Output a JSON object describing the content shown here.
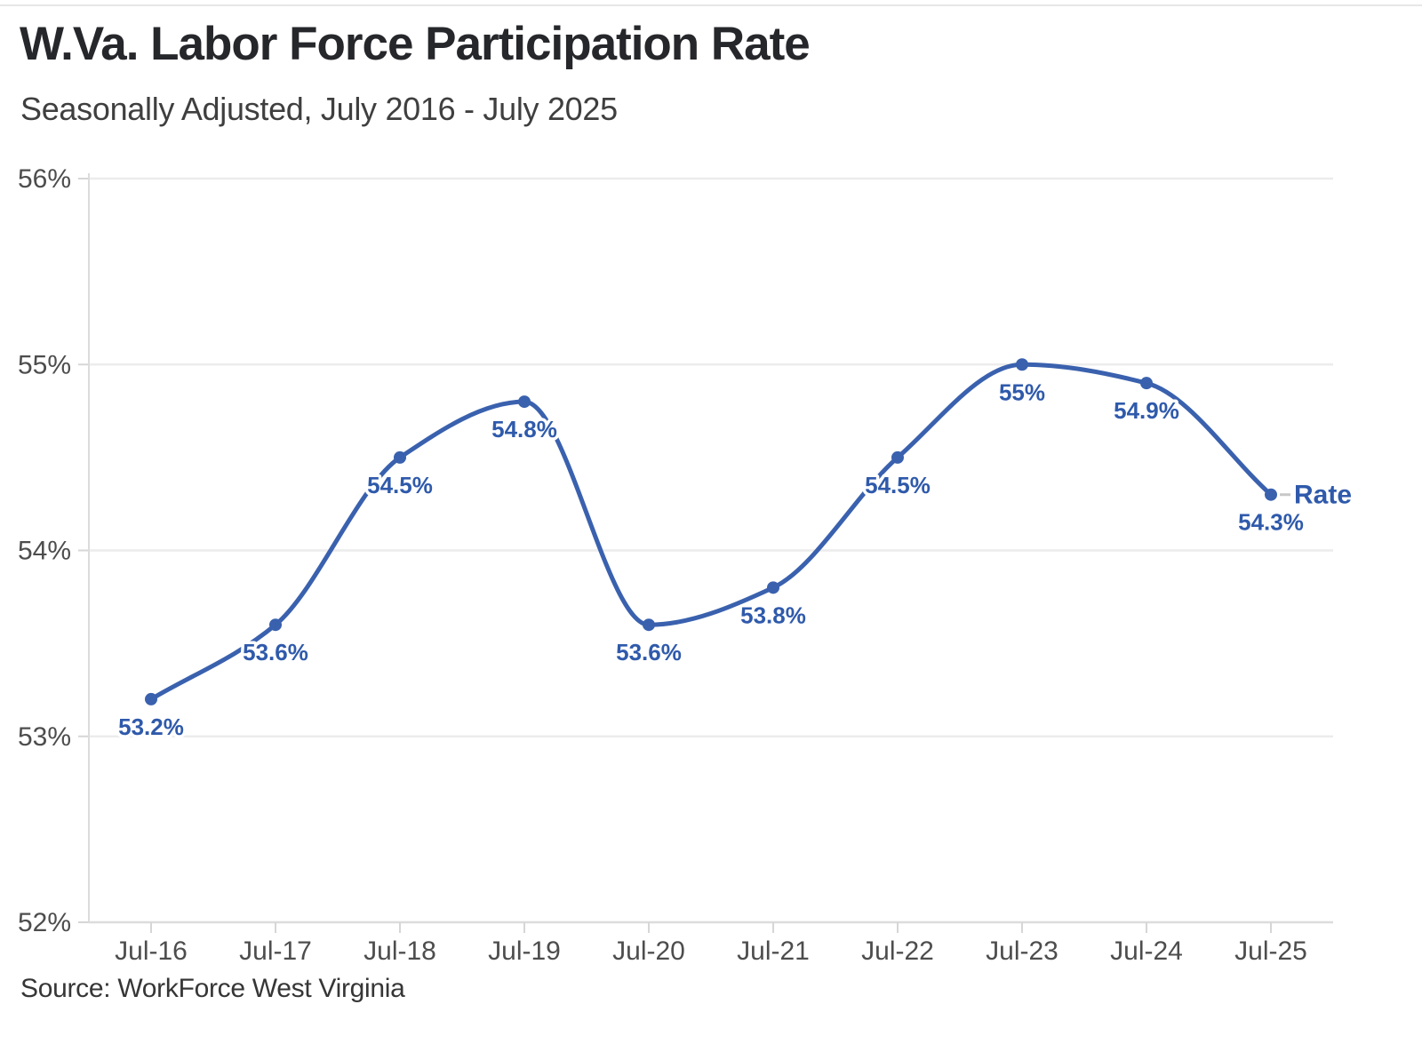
{
  "header": {
    "title": "W.Va. Labor Force Participation Rate",
    "subtitle": "Seasonally Adjusted, July 2016 - July 2025"
  },
  "footer": {
    "source": "Source: WorkForce West Virginia"
  },
  "chart_data": {
    "type": "line",
    "title": "W.Va. Labor Force Participation Rate",
    "subtitle": "Seasonally Adjusted, July 2016 - July 2025",
    "categories": [
      "Jul-16",
      "Jul-17",
      "Jul-18",
      "Jul-19",
      "Jul-20",
      "Jul-21",
      "Jul-22",
      "Jul-23",
      "Jul-24",
      "Jul-25"
    ],
    "series": [
      {
        "name": "Rate",
        "values": [
          53.2,
          53.6,
          54.5,
          54.8,
          53.6,
          53.8,
          54.5,
          55.0,
          54.9,
          54.3
        ]
      }
    ],
    "point_labels": [
      "53.2%",
      "53.6%",
      "54.5%",
      "54.8%",
      "53.6%",
      "53.8%",
      "54.5%",
      "55%",
      "54.9%",
      "54.3%"
    ],
    "xlabel": "",
    "ylabel": "",
    "ylim": [
      52,
      56
    ],
    "ytick_values": [
      52,
      53,
      54,
      55,
      56
    ],
    "ytick_labels": [
      "52%",
      "53%",
      "54%",
      "55%",
      "56%"
    ],
    "grid": "horizontal",
    "smooth": true,
    "legend_position": "end-of-line-label",
    "colors": {
      "line": "#3a61ae",
      "point": "#3a61ae",
      "label": "#2f5aab",
      "axis_text": "#4d4d4d",
      "grid": "#ececec",
      "axis": "#dcdcdc",
      "tick": "#d6d6d6",
      "connector": "#c8c8c8"
    }
  }
}
